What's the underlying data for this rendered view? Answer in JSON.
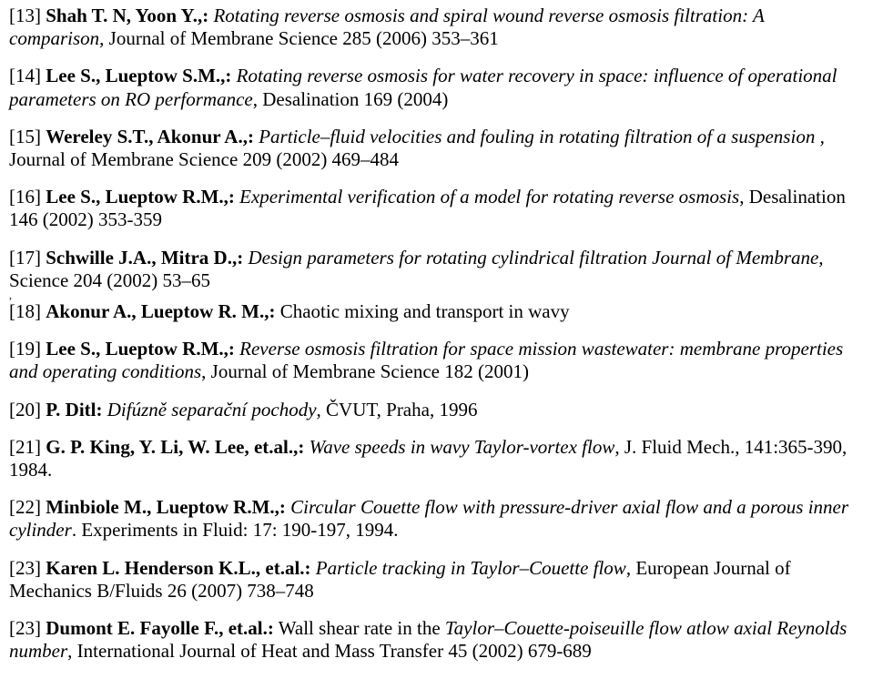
{
  "refs": [
    {
      "num": "[13]",
      "author": "Shah T. N, Yoon Y.,:",
      "title": "Rotating reverse osmosis and spiral wound reverse osmosis filtration: A comparison",
      "source": ", Journal of Membrane Science 285 (2006) 353–361"
    },
    {
      "num": "[14]",
      "author": "Lee S., Lueptow S.M.,:",
      "title": "Rotating reverse osmosis for water recovery in space: influence of operational parameters on RO performance",
      "source": ", Desalination 169 (2004)"
    },
    {
      "num": "[15]",
      "author": "Wereley S.T., Akonur A.,:",
      "title": "Particle–fluid velocities and fouling in rotating filtration of a suspension ,",
      "source": " Journal of Membrane Science 209 (2002) 469–484"
    },
    {
      "num": "[16]",
      "author": "Lee S., Lueptow R.M.,:",
      "title": "Experimental verification of a model for rotating reverse osmosis",
      "source": ", Desalination 146 (2002) 353-359"
    },
    {
      "num": "[17]",
      "author": "Schwille J.A., Mitra D.,:",
      "title": "Design parameters for rotating cylindrical filtration Journal of Membrane,",
      "source": " Science 204 (2002) 53–65",
      "hasSubComma": true
    },
    {
      "num": "[18]",
      "author": "Akonur A., Lueptow R. M.,:",
      "title": "",
      "source": " Chaotic mixing and transport in wavy"
    },
    {
      "num": "[19]",
      "author": "Lee S., Lueptow R.M.,:",
      "title": "Reverse osmosis filtration for space mission wastewater: membrane properties and operating conditions",
      "source": ", Journal of Membrane Science 182 (2001)"
    },
    {
      "num": "[20]",
      "author": "P. Ditl:",
      "title": "Difúzně separační pochody",
      "source": ", ČVUT, Praha, 1996"
    },
    {
      "num": "[21]",
      "author": "G. P. King, Y. Li, W. Lee, et.al.,:",
      "title": "Wave speeds in wavy Taylor-vortex flow",
      "source": ", J. Fluid Mech., 141:365-390, 1984."
    },
    {
      "num": "[22]",
      "author": "Minbiole M., Lueptow R.M.,:",
      "title": "Circular Couette flow with pressure-driver axial flow and a porous inner cylinder",
      "source": ". Experiments in Fluid: 17: 190-197, 1994."
    },
    {
      "num": "[23]",
      "author": "Karen L. Henderson K.L., et.al.:",
      "title": "Particle tracking in Taylor–Couette flow",
      "source": ", European Journal of Mechanics B/Fluids 26 (2007) 738–748"
    },
    {
      "num": "[23]",
      "author": "Dumont E. Fayolle F., et.al.:",
      "title": " ",
      "source": "Wall shear rate in the ",
      "italicInSource": "Taylor–Couette-poiseuille flow atlow axial Reynolds number",
      "sourceAfter": ", International Journal of Heat and Mass Transfer 45 (2002) 679-689"
    }
  ]
}
